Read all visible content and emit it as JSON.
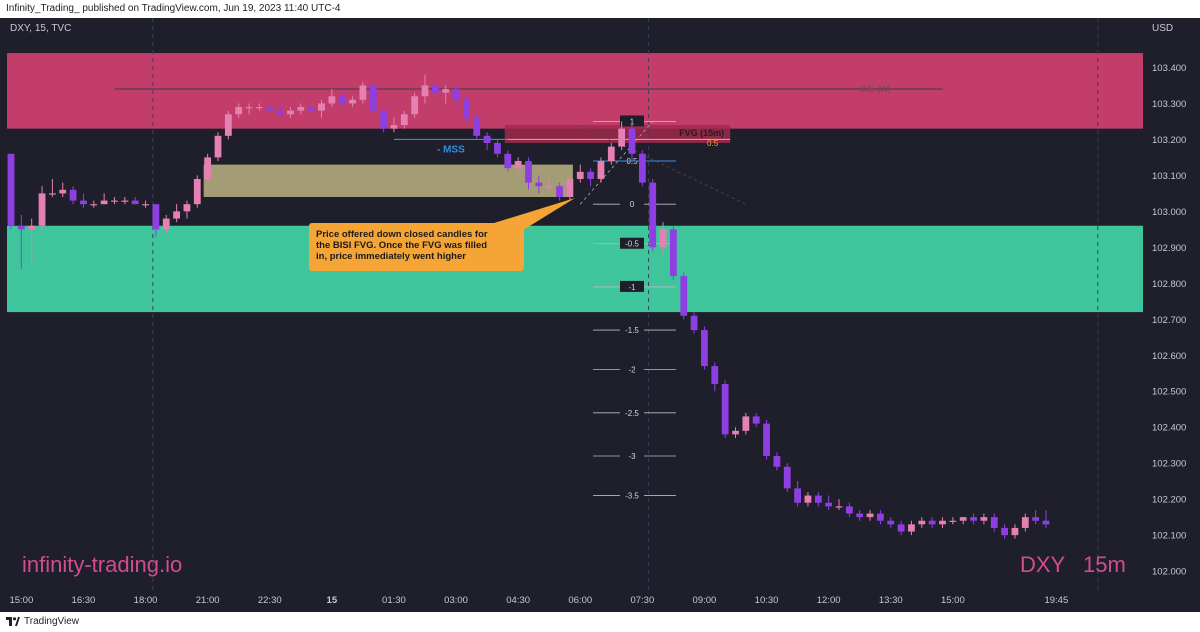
{
  "header": {
    "published_text": "Infinity_Trading_ published on TradingView.com, Jun 19, 2023 11:40 UTC-4"
  },
  "footer": {
    "brand": "TradingView"
  },
  "chart_data": {
    "type": "candlestick",
    "symbol_label": "DXY, 15, TVC",
    "currency_label": "USD",
    "watermark_left": "infinity-trading.io",
    "watermark_symbol": "DXY",
    "watermark_interval": "15m",
    "ylim": [
      101.96,
      103.5
    ],
    "y_ticks": [
      "103.400",
      "103.300",
      "103.200",
      "103.100",
      "103.000",
      "102.900",
      "102.800",
      "102.700",
      "102.600",
      "102.500",
      "102.400",
      "102.300",
      "102.200",
      "102.100",
      "102.000"
    ],
    "x_ticks": [
      {
        "label": "15:00",
        "bar": 1
      },
      {
        "label": "16:30",
        "bar": 7
      },
      {
        "label": "18:00",
        "bar": 13
      },
      {
        "label": "21:00",
        "bar": 19
      },
      {
        "label": "22:30",
        "bar": 25
      },
      {
        "label": "15",
        "bar": 31,
        "bold": true
      },
      {
        "label": "01:30",
        "bar": 37
      },
      {
        "label": "03:00",
        "bar": 43
      },
      {
        "label": "04:30",
        "bar": 49
      },
      {
        "label": "06:00",
        "bar": 55
      },
      {
        "label": "07:30",
        "bar": 61
      },
      {
        "label": "09:00",
        "bar": 67
      },
      {
        "label": "10:30",
        "bar": 73
      },
      {
        "label": "12:00",
        "bar": 79
      },
      {
        "label": "13:30",
        "bar": 85
      },
      {
        "label": "15:00",
        "bar": 91
      },
      {
        "label": "19:45",
        "bar": 101
      }
    ],
    "candles": [
      [
        103.16,
        103.16,
        102.95,
        102.96
      ],
      [
        102.96,
        102.99,
        102.84,
        102.95
      ],
      [
        102.95,
        102.98,
        102.85,
        102.96
      ],
      [
        102.96,
        103.07,
        102.95,
        103.05
      ],
      [
        103.05,
        103.09,
        103.04,
        103.05
      ],
      [
        103.05,
        103.08,
        103.04,
        103.06
      ],
      [
        103.06,
        103.07,
        103.02,
        103.03
      ],
      [
        103.03,
        103.05,
        103.01,
        103.02
      ],
      [
        103.02,
        103.03,
        103.01,
        103.02
      ],
      [
        103.02,
        103.05,
        103.02,
        103.03
      ],
      [
        103.03,
        103.04,
        103.02,
        103.03
      ],
      [
        103.03,
        103.04,
        103.02,
        103.03
      ],
      [
        103.03,
        103.04,
        103.02,
        103.02
      ],
      [
        103.02,
        103.03,
        103.01,
        103.02
      ],
      [
        103.02,
        103.02,
        102.93,
        102.95
      ],
      [
        102.95,
        102.99,
        102.94,
        102.98
      ],
      [
        102.98,
        103.02,
        102.97,
        103.0
      ],
      [
        103.0,
        103.03,
        102.98,
        103.02
      ],
      [
        103.02,
        103.1,
        103.01,
        103.09
      ],
      [
        103.09,
        103.16,
        103.08,
        103.15
      ],
      [
        103.15,
        103.22,
        103.14,
        103.21
      ],
      [
        103.21,
        103.28,
        103.2,
        103.27
      ],
      [
        103.27,
        103.3,
        103.26,
        103.29
      ],
      [
        103.29,
        103.3,
        103.27,
        103.29
      ],
      [
        103.29,
        103.3,
        103.28,
        103.29
      ],
      [
        103.29,
        103.3,
        103.27,
        103.28
      ],
      [
        103.28,
        103.3,
        103.26,
        103.27
      ],
      [
        103.27,
        103.29,
        103.26,
        103.28
      ],
      [
        103.28,
        103.3,
        103.27,
        103.29
      ],
      [
        103.29,
        103.31,
        103.27,
        103.28
      ],
      [
        103.28,
        103.31,
        103.26,
        103.3
      ],
      [
        103.3,
        103.34,
        103.29,
        103.32
      ],
      [
        103.32,
        103.33,
        103.29,
        103.3
      ],
      [
        103.3,
        103.32,
        103.29,
        103.31
      ],
      [
        103.31,
        103.36,
        103.3,
        103.35
      ],
      [
        103.35,
        103.36,
        103.27,
        103.28
      ],
      [
        103.28,
        103.29,
        103.22,
        103.23
      ],
      [
        103.23,
        103.26,
        103.22,
        103.24
      ],
      [
        103.24,
        103.28,
        103.23,
        103.27
      ],
      [
        103.27,
        103.33,
        103.26,
        103.32
      ],
      [
        103.32,
        103.38,
        103.3,
        103.35
      ],
      [
        103.35,
        103.36,
        103.31,
        103.33
      ],
      [
        103.33,
        103.35,
        103.3,
        103.34
      ],
      [
        103.34,
        103.35,
        103.29,
        103.31
      ],
      [
        103.31,
        103.32,
        103.25,
        103.26
      ],
      [
        103.26,
        103.27,
        103.2,
        103.21
      ],
      [
        103.21,
        103.22,
        103.17,
        103.19
      ],
      [
        103.19,
        103.2,
        103.15,
        103.16
      ],
      [
        103.16,
        103.17,
        103.11,
        103.12
      ],
      [
        103.12,
        103.15,
        103.11,
        103.14
      ],
      [
        103.14,
        103.15,
        103.06,
        103.08
      ],
      [
        103.08,
        103.1,
        103.05,
        103.07
      ],
      [
        103.07,
        103.09,
        103.06,
        103.07
      ],
      [
        103.07,
        103.08,
        103.03,
        103.04
      ],
      [
        103.04,
        103.1,
        103.03,
        103.09
      ],
      [
        103.09,
        103.13,
        103.08,
        103.11
      ],
      [
        103.11,
        103.12,
        103.07,
        103.09
      ],
      [
        103.09,
        103.15,
        103.08,
        103.14
      ],
      [
        103.14,
        103.19,
        103.13,
        103.18
      ],
      [
        103.18,
        103.25,
        103.17,
        103.23
      ],
      [
        103.23,
        103.24,
        103.14,
        103.16
      ],
      [
        103.16,
        103.17,
        103.07,
        103.08
      ],
      [
        103.08,
        103.09,
        102.89,
        102.9
      ],
      [
        102.9,
        102.97,
        102.88,
        102.95
      ],
      [
        102.95,
        102.96,
        102.81,
        102.82
      ],
      [
        102.82,
        102.83,
        102.7,
        102.71
      ],
      [
        102.71,
        102.72,
        102.66,
        102.67
      ],
      [
        102.67,
        102.68,
        102.56,
        102.57
      ],
      [
        102.57,
        102.58,
        102.5,
        102.52
      ],
      [
        102.52,
        102.53,
        102.37,
        102.38
      ],
      [
        102.38,
        102.4,
        102.37,
        102.39
      ],
      [
        102.39,
        102.44,
        102.38,
        102.43
      ],
      [
        102.43,
        102.44,
        102.4,
        102.41
      ],
      [
        102.41,
        102.42,
        102.31,
        102.32
      ],
      [
        102.32,
        102.33,
        102.28,
        102.29
      ],
      [
        102.29,
        102.3,
        102.22,
        102.23
      ],
      [
        102.23,
        102.25,
        102.18,
        102.19
      ],
      [
        102.19,
        102.22,
        102.18,
        102.21
      ],
      [
        102.21,
        102.22,
        102.18,
        102.19
      ],
      [
        102.19,
        102.21,
        102.17,
        102.18
      ],
      [
        102.18,
        102.2,
        102.17,
        102.18
      ],
      [
        102.18,
        102.19,
        102.15,
        102.16
      ],
      [
        102.16,
        102.17,
        102.14,
        102.15
      ],
      [
        102.15,
        102.17,
        102.14,
        102.16
      ],
      [
        102.16,
        102.17,
        102.13,
        102.14
      ],
      [
        102.14,
        102.15,
        102.12,
        102.13
      ],
      [
        102.13,
        102.14,
        102.1,
        102.11
      ],
      [
        102.11,
        102.14,
        102.1,
        102.13
      ],
      [
        102.13,
        102.15,
        102.12,
        102.14
      ],
      [
        102.14,
        102.15,
        102.12,
        102.13
      ],
      [
        102.13,
        102.15,
        102.12,
        102.14
      ],
      [
        102.14,
        102.15,
        102.13,
        102.14
      ],
      [
        102.14,
        102.15,
        102.13,
        102.15
      ],
      [
        102.15,
        102.16,
        102.13,
        102.14
      ],
      [
        102.14,
        102.16,
        102.13,
        102.15
      ],
      [
        102.15,
        102.16,
        102.11,
        102.12
      ],
      [
        102.12,
        102.13,
        102.09,
        102.1
      ],
      [
        102.1,
        102.13,
        102.09,
        102.12
      ],
      [
        102.12,
        102.16,
        102.11,
        102.15
      ],
      [
        102.15,
        102.17,
        102.13,
        102.14
      ],
      [
        102.14,
        102.17,
        102.12,
        102.13
      ]
    ],
    "zones": [
      {
        "name": "bearish-zone",
        "top": 103.44,
        "bottom": 103.23,
        "color": "#c33d6b"
      },
      {
        "name": "bullish-zone",
        "top": 102.96,
        "bottom": 102.72,
        "color": "#3ec59b"
      },
      {
        "name": "bisi-fvg",
        "top": 103.13,
        "bottom": 103.04,
        "color": "#a39c74",
        "bar_start": 19,
        "bar_end": 54
      }
    ],
    "fvg": {
      "label": "FVG (15m)",
      "mid_label": "0.5",
      "top": 103.24,
      "bottom": 103.19,
      "bar_start": 48,
      "bar_end": 69
    },
    "ce_line": {
      "label": "C.E. (W)",
      "value": 103.34
    },
    "mss": {
      "label": "- MSS",
      "value": 103.2,
      "bar_start": 37,
      "bar_end": 48
    },
    "fib_levels": [
      "1",
      "0.5",
      "0",
      "-0.5",
      "-1",
      "-1.5",
      "-2",
      "-2.5",
      "-3",
      "-3.5"
    ],
    "fib_values": [
      103.25,
      103.14,
      103.02,
      102.91,
      102.79,
      102.67,
      102.56,
      102.44,
      102.32,
      102.21
    ],
    "annotation": {
      "text": [
        "Price offered down closed candles for",
        "the BISI FVG. Once the FVG was filled",
        "in, price immediately went higher"
      ],
      "color": "#f4a535"
    },
    "colors": {
      "up": "#e580b2",
      "down": "#8e3fe2",
      "background": "#1f1f2b"
    }
  }
}
